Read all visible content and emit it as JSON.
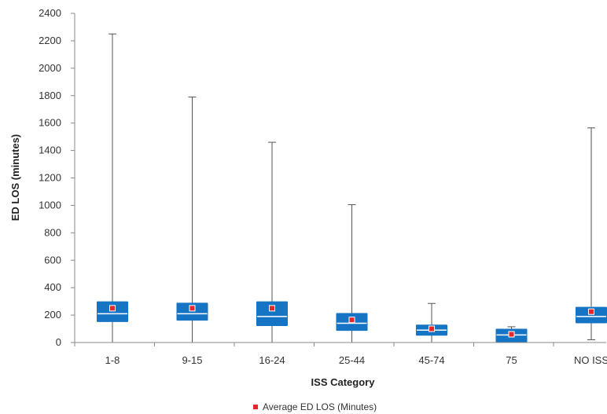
{
  "chart_data": {
    "type": "boxplot",
    "title": "",
    "xlabel": "ISS Category",
    "ylabel": "ED LOS (minutes)",
    "ylim": [
      0,
      2400
    ],
    "yticks": [
      0,
      200,
      400,
      600,
      800,
      1000,
      1200,
      1400,
      1600,
      1800,
      2000,
      2200,
      2400
    ],
    "grid": false,
    "legend_position": "bottom-center",
    "categories": [
      "1-8",
      "9-15",
      "16-24",
      "25-44",
      "45-74",
      "75",
      "NO ISS"
    ],
    "series": [
      {
        "min": [
          0,
          0,
          0,
          0,
          0,
          0,
          20
        ],
        "q1": [
          150,
          160,
          120,
          85,
          50,
          0,
          140
        ],
        "median": [
          210,
          210,
          190,
          140,
          90,
          55,
          190
        ],
        "q3": [
          300,
          290,
          300,
          215,
          130,
          100,
          260
        ],
        "max": [
          2250,
          1790,
          1460,
          1005,
          285,
          115,
          1565
        ]
      },
      {
        "name": "Average ED LOS (Minutes)",
        "values": [
          250,
          250,
          250,
          165,
          100,
          60,
          225
        ]
      }
    ],
    "colors": {
      "box": "#1574c4",
      "median_line": "#ffffff",
      "mean_marker": "#e8262a",
      "whisker": "#555555",
      "axis": "#888888"
    }
  }
}
